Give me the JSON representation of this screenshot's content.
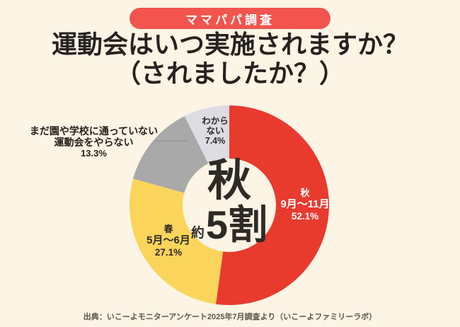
{
  "badge": {
    "label": "ママパパ調査",
    "bg_color": "#F2544E",
    "text_color": "#FFFFFF"
  },
  "title": {
    "line1": "運動会はいつ実施されますか？",
    "line2": "（されましたか？）"
  },
  "center": {
    "season": "秋",
    "approx": "約",
    "amount": "5割"
  },
  "source": "出典：いこーよモニターアンケート2025年7月調査より（いこーよファミリーラボ）",
  "colors": {
    "background": "#FCF4E5",
    "autumn_red": "#E93A2E",
    "spring_yellow": "#FBD55B",
    "none_gray": "#A9A9A9",
    "unknown_gray": "#DCDCE2",
    "leader_line": "#9B9B9B"
  },
  "chart_data": {
    "type": "pie",
    "donut": true,
    "direction": "clockwise",
    "start_angle_deg": 0,
    "title": "運動会はいつ実施されますか？（されましたか？）",
    "unit": "%",
    "center_label": "秋 約5割",
    "segments": [
      {
        "label": "秋",
        "period": "9月～11月",
        "value": 52.1,
        "value_label": "52.1%",
        "color": "#E93A2E",
        "label_color": "#FFFFFF"
      },
      {
        "label": "春",
        "period": "5月～6月",
        "value": 27.1,
        "value_label": "27.1%",
        "color": "#FBD55B",
        "label_color": "#2E2A26"
      },
      {
        "label": "まだ園や学校に通っていない 運動会をやらない",
        "label_line1": "まだ園や学校に通っていない",
        "label_line2": "運動会をやらない",
        "value": 13.3,
        "value_label": "13.3%",
        "color": "#A9A9A9",
        "label_color": "#26221F"
      },
      {
        "label": "わからない",
        "label_line1": "わから",
        "label_line2": "ない",
        "value": 7.4,
        "value_label": "7.4%",
        "color": "#DCDCE2",
        "label_color": "#2E2A26"
      }
    ]
  }
}
